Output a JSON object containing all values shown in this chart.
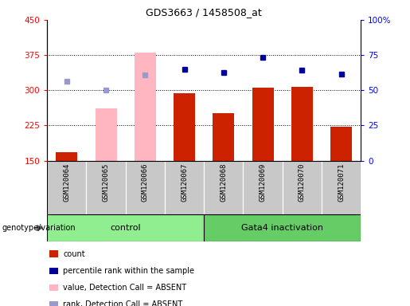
{
  "title": "GDS3663 / 1458508_at",
  "samples": [
    "GSM120064",
    "GSM120065",
    "GSM120066",
    "GSM120067",
    "GSM120068",
    "GSM120069",
    "GSM120070",
    "GSM120071"
  ],
  "count_values": [
    null,
    null,
    null,
    293,
    252,
    306,
    307,
    222
  ],
  "count_absent": [
    168,
    null,
    null,
    null,
    null,
    null,
    null,
    null
  ],
  "pink_bar_values": [
    null,
    262,
    380,
    null,
    null,
    null,
    null,
    null
  ],
  "blue_square_values": [
    null,
    null,
    null,
    345,
    338,
    370,
    343,
    335
  ],
  "light_blue_square_values": [
    320,
    300,
    332,
    null,
    null,
    null,
    null,
    null
  ],
  "ylim_left": [
    150,
    450
  ],
  "ylim_right": [
    0,
    100
  ],
  "yticks_left": [
    150,
    225,
    300,
    375,
    450
  ],
  "yticks_right": [
    0,
    25,
    50,
    75,
    100
  ],
  "ytick_labels_left": [
    "150",
    "225",
    "300",
    "375",
    "450"
  ],
  "ytick_labels_right": [
    "0",
    "25",
    "50",
    "75",
    "100%"
  ],
  "control_indices": [
    0,
    1,
    2,
    3
  ],
  "gata4_indices": [
    4,
    5,
    6,
    7
  ],
  "group_labels": [
    "control",
    "Gata4 inactivation"
  ],
  "group_color_control": "#90EE90",
  "group_color_gata4": "#66CD66",
  "bar_color_red": "#CC2200",
  "bar_color_pink": "#FFB6C1",
  "dot_color_blue": "#000099",
  "dot_color_lightblue": "#9999CC",
  "grid_dotted_at": [
    225,
    300,
    375
  ],
  "legend_labels": [
    "count",
    "percentile rank within the sample",
    "value, Detection Call = ABSENT",
    "rank, Detection Call = ABSENT"
  ],
  "legend_colors": [
    "#CC2200",
    "#000099",
    "#FFB6C1",
    "#9999CC"
  ]
}
